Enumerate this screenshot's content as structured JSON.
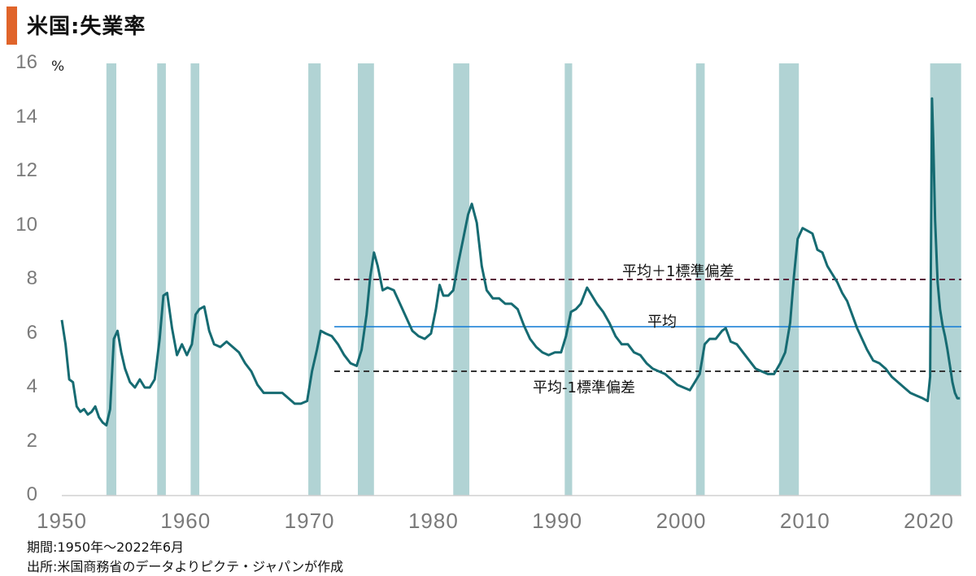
{
  "header": {
    "title": "米国:失業率",
    "accent_color": "#e0642a"
  },
  "footer": {
    "period": "期間:1950年～2022年6月",
    "source": "出所:米国商務省のデータよりピクテ・ジャパンが作成"
  },
  "colors": {
    "line": "#166b72",
    "recession": "#b1d3d4",
    "mean": "#1f82d6",
    "upper_band": "#5a1f3a",
    "lower_band": "#333333",
    "axis": "#d0d0d0"
  },
  "chart_data": {
    "type": "line",
    "title": "米国:失業率",
    "xlabel": "",
    "ylabel": "%",
    "unit_label": "%",
    "xlim": [
      1950,
      2022.5
    ],
    "ylim": [
      0,
      16
    ],
    "yticks": [
      0,
      2,
      4,
      6,
      8,
      10,
      12,
      14,
      16
    ],
    "xticks": [
      1950,
      1960,
      1970,
      1980,
      1990,
      2000,
      2010,
      2020
    ],
    "grid": false,
    "legend": null,
    "series": [
      {
        "name": "失業率",
        "x": [
          1950.0,
          1950.3,
          1950.6,
          1950.9,
          1951.2,
          1951.5,
          1951.8,
          1952.1,
          1952.4,
          1952.7,
          1953.0,
          1953.3,
          1953.6,
          1953.9,
          1954.2,
          1954.5,
          1954.8,
          1955.1,
          1955.5,
          1955.9,
          1956.3,
          1956.7,
          1957.1,
          1957.5,
          1957.9,
          1958.2,
          1958.5,
          1958.9,
          1959.3,
          1959.7,
          1960.1,
          1960.5,
          1960.8,
          1961.1,
          1961.5,
          1961.9,
          1962.3,
          1962.8,
          1963.3,
          1963.8,
          1964.3,
          1964.8,
          1965.3,
          1965.8,
          1966.3,
          1966.8,
          1967.3,
          1967.8,
          1968.3,
          1968.8,
          1969.3,
          1969.8,
          1970.2,
          1970.6,
          1970.9,
          1971.3,
          1971.8,
          1972.3,
          1972.8,
          1973.3,
          1973.8,
          1974.2,
          1974.6,
          1974.9,
          1975.2,
          1975.5,
          1975.9,
          1976.3,
          1976.8,
          1977.3,
          1977.8,
          1978.3,
          1978.8,
          1979.3,
          1979.8,
          1980.2,
          1980.5,
          1980.8,
          1981.2,
          1981.6,
          1982.0,
          1982.4,
          1982.8,
          1983.1,
          1983.5,
          1983.9,
          1984.3,
          1984.8,
          1985.3,
          1985.8,
          1986.3,
          1986.8,
          1987.3,
          1987.8,
          1988.3,
          1988.8,
          1989.3,
          1989.8,
          1990.3,
          1990.7,
          1991.1,
          1991.5,
          1991.9,
          1992.4,
          1992.8,
          1993.2,
          1993.7,
          1994.2,
          1994.7,
          1995.2,
          1995.7,
          1996.2,
          1996.7,
          1997.2,
          1997.7,
          1998.2,
          1998.7,
          1999.2,
          1999.7,
          2000.2,
          2000.7,
          2001.1,
          2001.5,
          2001.9,
          2002.3,
          2002.8,
          2003.3,
          2003.6,
          2004.0,
          2004.5,
          2005.0,
          2005.5,
          2006.0,
          2006.5,
          2007.0,
          2007.5,
          2008.0,
          2008.4,
          2008.8,
          2009.1,
          2009.4,
          2009.8,
          2010.2,
          2010.6,
          2011.0,
          2011.4,
          2011.8,
          2012.2,
          2012.6,
          2013.0,
          2013.4,
          2013.8,
          2014.2,
          2014.6,
          2015.0,
          2015.5,
          2016.0,
          2016.5,
          2017.0,
          2017.5,
          2018.0,
          2018.5,
          2019.0,
          2019.5,
          2019.9,
          2020.1,
          2020.25,
          2020.35,
          2020.5,
          2020.7,
          2020.9,
          2021.1,
          2021.3,
          2021.5,
          2021.7,
          2021.9,
          2022.1,
          2022.3,
          2022.5
        ],
        "values": [
          6.5,
          5.6,
          4.3,
          4.2,
          3.3,
          3.1,
          3.2,
          3.0,
          3.1,
          3.3,
          2.9,
          2.7,
          2.6,
          3.2,
          5.8,
          6.1,
          5.3,
          4.7,
          4.2,
          4.0,
          4.3,
          4.0,
          4.0,
          4.3,
          5.8,
          7.4,
          7.5,
          6.2,
          5.2,
          5.6,
          5.2,
          5.6,
          6.7,
          6.9,
          7.0,
          6.1,
          5.6,
          5.5,
          5.7,
          5.5,
          5.3,
          4.9,
          4.6,
          4.1,
          3.8,
          3.8,
          3.8,
          3.8,
          3.6,
          3.4,
          3.4,
          3.5,
          4.6,
          5.4,
          6.1,
          6.0,
          5.9,
          5.6,
          5.2,
          4.9,
          4.8,
          5.4,
          6.7,
          8.1,
          9.0,
          8.5,
          7.6,
          7.7,
          7.6,
          7.1,
          6.6,
          6.1,
          5.9,
          5.8,
          6.0,
          6.9,
          7.8,
          7.4,
          7.4,
          7.6,
          8.6,
          9.5,
          10.4,
          10.8,
          10.1,
          8.5,
          7.6,
          7.3,
          7.3,
          7.1,
          7.1,
          6.9,
          6.3,
          5.8,
          5.5,
          5.3,
          5.2,
          5.3,
          5.3,
          5.9,
          6.8,
          6.9,
          7.1,
          7.7,
          7.4,
          7.1,
          6.8,
          6.4,
          5.9,
          5.6,
          5.6,
          5.3,
          5.2,
          4.9,
          4.7,
          4.6,
          4.5,
          4.3,
          4.1,
          4.0,
          3.9,
          4.2,
          4.5,
          5.6,
          5.8,
          5.8,
          6.1,
          6.2,
          5.7,
          5.6,
          5.3,
          5.0,
          4.7,
          4.6,
          4.5,
          4.5,
          4.9,
          5.3,
          6.4,
          8.1,
          9.5,
          9.9,
          9.8,
          9.7,
          9.1,
          9.0,
          8.5,
          8.2,
          7.9,
          7.5,
          7.2,
          6.7,
          6.2,
          5.8,
          5.4,
          5.0,
          4.9,
          4.7,
          4.4,
          4.2,
          4.0,
          3.8,
          3.7,
          3.6,
          3.5,
          4.4,
          14.7,
          13.2,
          10.2,
          7.9,
          6.9,
          6.3,
          5.9,
          5.4,
          4.8,
          4.2,
          3.8,
          3.6,
          3.6
        ]
      }
    ],
    "reference_lines": [
      {
        "label": "平均＋1標準偏差",
        "value": 8.0,
        "style": "dashed",
        "x_start": 1972.0
      },
      {
        "label": "平均",
        "value": 6.25,
        "style": "solid",
        "x_start": 1972.0
      },
      {
        "label": "平均-1標準偏差",
        "value": 4.6,
        "style": "dashed",
        "x_start": 1972.0
      }
    ],
    "shaded_periods": [
      [
        1953.6,
        1954.4
      ],
      [
        1957.7,
        1958.4
      ],
      [
        1960.4,
        1961.1
      ],
      [
        1969.9,
        1970.9
      ],
      [
        1973.9,
        1975.2
      ],
      [
        1981.6,
        1982.9
      ],
      [
        1990.6,
        1991.2
      ],
      [
        2001.2,
        2001.9
      ],
      [
        2007.9,
        2009.5
      ],
      [
        2020.1,
        2022.6
      ]
    ]
  }
}
